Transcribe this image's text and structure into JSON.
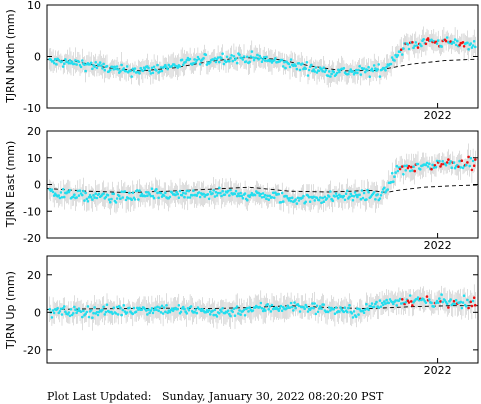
{
  "footer": {
    "label": "Plot Last Updated:",
    "timestamp": "Sunday, January 30, 2022 08:20:20 PST"
  },
  "colors": {
    "point": "#22ddee",
    "recent_point": "#ee1111",
    "error_bar": "#bbbbbb",
    "model_line": "#000000"
  },
  "chart_data": [
    {
      "type": "scatter",
      "ylabel": "TJRN North (mm)",
      "ylim": [
        -10,
        10
      ],
      "yticks": [
        -10,
        0,
        10
      ],
      "xtick_label": "2022",
      "xlim": [
        2019.1,
        2022.3
      ],
      "xtick": 2022.0,
      "grid": false,
      "series": [
        {
          "x": [
            2019.15,
            2019.4,
            2019.65,
            2019.9,
            2020.15,
            2020.4,
            2020.65,
            2020.9,
            2021.15,
            2021.4,
            2021.6,
            2021.75,
            2021.95,
            2022.1
          ],
          "values": [
            -1.0,
            -1.5,
            -2.8,
            -2.5,
            -1.2,
            -0.3,
            -0.3,
            -1.5,
            -2.8,
            -3.0,
            -2.5,
            2.0,
            3.0,
            2.5
          ]
        }
      ],
      "model": {
        "x": [
          2019.1,
          2019.3,
          2019.55,
          2019.8,
          2020.05,
          2020.3,
          2020.55,
          2020.8,
          2021.05,
          2021.3,
          2021.55,
          2021.8,
          2022.05,
          2022.3
        ],
        "values": [
          -0.6,
          -0.9,
          -2.2,
          -2.8,
          -2.2,
          -1.0,
          -0.2,
          -0.5,
          -1.8,
          -2.8,
          -2.7,
          -1.5,
          -0.8,
          -0.5
        ]
      }
    },
    {
      "type": "scatter",
      "ylabel": "TJRN East (mm)",
      "ylim": [
        -20,
        20
      ],
      "yticks": [
        -20,
        -10,
        0,
        10,
        20
      ],
      "xtick_label": "2022",
      "xlim": [
        2019.1,
        2022.3
      ],
      "xtick": 2022.0,
      "grid": false,
      "series": [
        {
          "x": [
            2019.15,
            2019.4,
            2019.65,
            2019.9,
            2020.15,
            2020.4,
            2020.65,
            2020.9,
            2021.15,
            2021.4,
            2021.6,
            2021.7,
            2021.9,
            2022.1
          ],
          "values": [
            -3.0,
            -4.5,
            -4.5,
            -4.0,
            -4.0,
            -3.5,
            -4.0,
            -5.5,
            -5.0,
            -4.0,
            -4.0,
            5.5,
            7.0,
            8.0
          ]
        }
      ],
      "model": {
        "x": [
          2019.1,
          2019.4,
          2019.7,
          2020.0,
          2020.3,
          2020.6,
          2020.9,
          2021.2,
          2021.5,
          2021.62,
          2021.7,
          2021.9,
          2022.1,
          2022.3
        ],
        "values": [
          -1.5,
          -2.5,
          -3.0,
          -2.5,
          -1.8,
          -1.0,
          -2.5,
          -2.8,
          -2.2,
          -3.0,
          -2.2,
          -1.0,
          -0.5,
          -0.2
        ]
      }
    },
    {
      "type": "scatter",
      "ylabel": "TJRN Up (mm)",
      "ylim": [
        -27,
        30
      ],
      "yticks": [
        -20,
        0,
        20
      ],
      "xtick_label": "2022",
      "xlim": [
        2019.1,
        2022.3
      ],
      "xtick": 2022.0,
      "grid": false,
      "series": [
        {
          "x": [
            2019.15,
            2019.4,
            2019.65,
            2019.9,
            2020.15,
            2020.4,
            2020.65,
            2020.9,
            2021.15,
            2021.4,
            2021.6,
            2021.75,
            2021.95,
            2022.1
          ],
          "values": [
            0.0,
            0.5,
            1.0,
            2.0,
            1.0,
            0.0,
            2.0,
            3.0,
            2.0,
            0.0,
            5.0,
            7.0,
            6.0,
            5.0
          ]
        }
      ],
      "model": {
        "x": [
          2019.1,
          2019.4,
          2019.7,
          2020.0,
          2020.3,
          2020.6,
          2020.9,
          2021.2,
          2021.5,
          2021.8,
          2022.1,
          2022.3
        ],
        "values": [
          1.5,
          1.8,
          2.0,
          2.2,
          2.0,
          2.5,
          3.5,
          2.5,
          2.0,
          3.0,
          3.5,
          3.5
        ]
      }
    }
  ]
}
